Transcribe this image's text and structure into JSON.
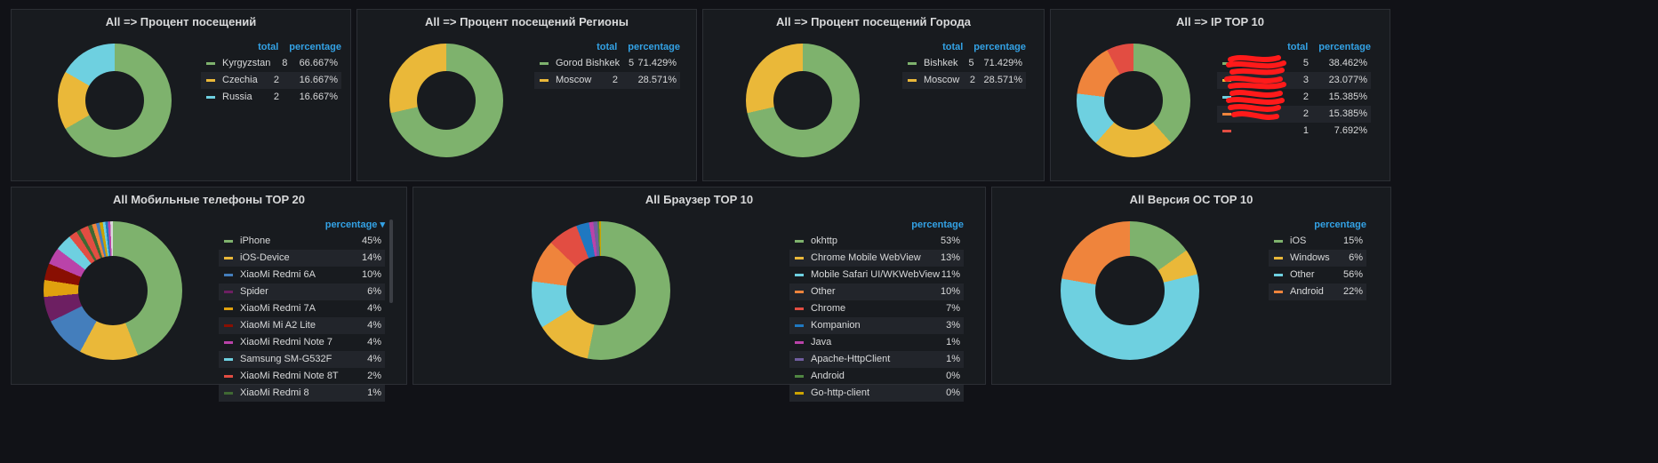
{
  "panels": [
    {
      "title": "All => Процент посещений",
      "headers": {
        "total": "total",
        "percentage": "percentage"
      },
      "rows": [
        {
          "name": "Kyrgyzstan",
          "total": "8",
          "pct": "66.667%",
          "color": "#7eb26d",
          "value": 66.667
        },
        {
          "name": "Czechia",
          "total": "2",
          "pct": "16.667%",
          "color": "#eab839",
          "value": 16.667
        },
        {
          "name": "Russia",
          "total": "2",
          "pct": "16.667%",
          "color": "#6ed0e0",
          "value": 16.667
        }
      ]
    },
    {
      "title": "All => Процент посещений Регионы",
      "headers": {
        "total": "total",
        "percentage": "percentage"
      },
      "rows": [
        {
          "name": "Gorod Bishkek",
          "total": "5",
          "pct": "71.429%",
          "color": "#7eb26d",
          "value": 71.429
        },
        {
          "name": "Moscow",
          "total": "2",
          "pct": "28.571%",
          "color": "#eab839",
          "value": 28.571
        }
      ]
    },
    {
      "title": "All => Процент посещений Города",
      "headers": {
        "total": "total",
        "percentage": "percentage"
      },
      "rows": [
        {
          "name": "Bishkek",
          "total": "5",
          "pct": "71.429%",
          "color": "#7eb26d",
          "value": 71.429
        },
        {
          "name": "Moscow",
          "total": "2",
          "pct": "28.571%",
          "color": "#eab839",
          "value": 28.571
        }
      ]
    },
    {
      "title": "All => IP TOP 10",
      "headers": {
        "total": "total",
        "percentage": "percentage"
      },
      "rows": [
        {
          "name": "",
          "total": "5",
          "pct": "38.462%",
          "color": "#7eb26d",
          "value": 38.462
        },
        {
          "name": "",
          "total": "3",
          "pct": "23.077%",
          "color": "#eab839",
          "value": 23.077
        },
        {
          "name": "",
          "total": "2",
          "pct": "15.385%",
          "color": "#6ed0e0",
          "value": 15.385
        },
        {
          "name": "",
          "total": "2",
          "pct": "15.385%",
          "color": "#ef843c",
          "value": 15.385
        },
        {
          "name": "",
          "total": "1",
          "pct": "7.692%",
          "color": "#e24d42",
          "value": 7.692
        }
      ]
    },
    {
      "title": "All Мобильные телефоны TOP 20",
      "headers": {
        "percentage": "percentage ▾"
      },
      "rows": [
        {
          "name": "iPhone",
          "pct": "45%",
          "color": "#7eb26d",
          "value": 45
        },
        {
          "name": "iOS-Device",
          "pct": "14%",
          "color": "#eab839",
          "value": 14
        },
        {
          "name": "XiaoMi Redmi 6A",
          "pct": "10%",
          "color": "#447ebc",
          "value": 10
        },
        {
          "name": "Spider",
          "pct": "6%",
          "color": "#6d1f62",
          "value": 6
        },
        {
          "name": "XiaoMi Redmi 7A",
          "pct": "4%",
          "color": "#e0a10e",
          "value": 4
        },
        {
          "name": "XiaoMi Mi A2 Lite",
          "pct": "4%",
          "color": "#890f02",
          "value": 4
        },
        {
          "name": "XiaoMi Redmi Note 7",
          "pct": "4%",
          "color": "#ba43a9",
          "value": 4
        },
        {
          "name": "Samsung SM-G532F",
          "pct": "4%",
          "color": "#6ed0e0",
          "value": 4
        },
        {
          "name": "XiaoMi Redmi Note 8T",
          "pct": "2%",
          "color": "#e24d42",
          "value": 2
        },
        {
          "name": "XiaoMi Redmi 8",
          "pct": "1%",
          "color": "#3f6833",
          "value": 1
        }
      ]
    },
    {
      "title": "All Браузер TOP 10",
      "headers": {
        "percentage": "percentage"
      },
      "rows": [
        {
          "name": "okhttp",
          "pct": "53%",
          "color": "#7eb26d",
          "value": 53
        },
        {
          "name": "Chrome Mobile WebView",
          "pct": "13%",
          "color": "#eab839",
          "value": 13
        },
        {
          "name": "Mobile Safari UI/WKWebView",
          "pct": "11%",
          "color": "#6ed0e0",
          "value": 11
        },
        {
          "name": "Other",
          "pct": "10%",
          "color": "#ef843c",
          "value": 10
        },
        {
          "name": "Chrome",
          "pct": "7%",
          "color": "#e24d42",
          "value": 7
        },
        {
          "name": "Kompanion",
          "pct": "3%",
          "color": "#1f78c1",
          "value": 3
        },
        {
          "name": "Java",
          "pct": "1%",
          "color": "#ba43a9",
          "value": 1
        },
        {
          "name": "Apache-HttpClient",
          "pct": "1%",
          "color": "#705da0",
          "value": 1
        },
        {
          "name": "Android",
          "pct": "0%",
          "color": "#508642",
          "value": 0.4
        },
        {
          "name": "Go-http-client",
          "pct": "0%",
          "color": "#cca300",
          "value": 0.4
        }
      ]
    },
    {
      "title": "All Версия ОС TOP 10",
      "headers": {
        "percentage": "percentage"
      },
      "rows": [
        {
          "name": "iOS",
          "pct": "15%",
          "color": "#7eb26d",
          "value": 15
        },
        {
          "name": "Windows",
          "pct": "6%",
          "color": "#eab839",
          "value": 6
        },
        {
          "name": "Other",
          "pct": "56%",
          "color": "#6ed0e0",
          "value": 56
        },
        {
          "name": "Android",
          "pct": "22%",
          "color": "#ef843c",
          "value": 22
        }
      ]
    }
  ],
  "phones_extra_slices": [
    {
      "color": "#e24d42",
      "value": 2
    },
    {
      "color": "#3f6833",
      "value": 1
    },
    {
      "color": "#ef843c",
      "value": 1
    },
    {
      "color": "#447ebc",
      "value": 0.8
    },
    {
      "color": "#cca300",
      "value": 0.8
    },
    {
      "color": "#6ed0e0",
      "value": 0.6
    },
    {
      "color": "#1f78c1",
      "value": 0.6
    },
    {
      "color": "#ba43a9",
      "value": 0.6
    },
    {
      "color": "#d8d9da",
      "value": 0.6
    }
  ]
}
